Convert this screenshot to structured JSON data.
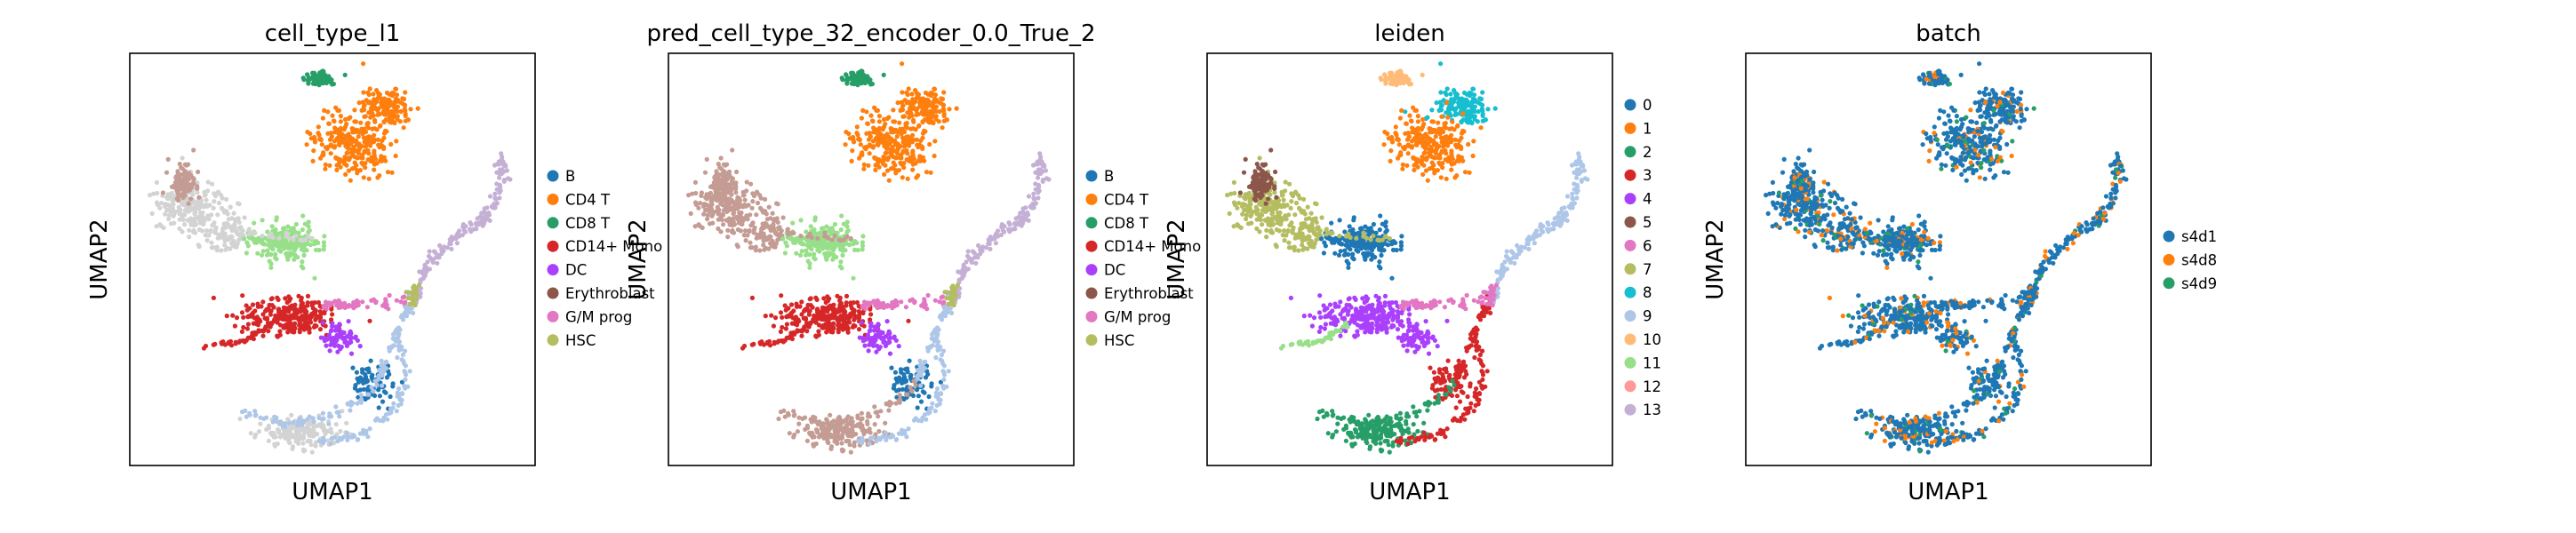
{
  "figure": {
    "panels": [
      {
        "title": "cell_type_l1",
        "xlabel": "UMAP1",
        "ylabel": "UMAP2",
        "legend": [
          {
            "label": "B",
            "color": "#1f77b4"
          },
          {
            "label": "CD4 T",
            "color": "#ff7f0e"
          },
          {
            "label": "CD8 T",
            "color": "#279e68"
          },
          {
            "label": "CD14+ Mono",
            "color": "#d62728"
          },
          {
            "label": "DC",
            "color": "#aa40fc"
          },
          {
            "label": "Erythroblast",
            "color": "#8c564b"
          },
          {
            "label": "G/M prog",
            "color": "#e377c2"
          },
          {
            "label": "HSC",
            "color": "#b5bd61"
          }
        ]
      },
      {
        "title": "pred_cell_type_32_encoder_0.0_True_2",
        "xlabel": "UMAP1",
        "ylabel": "UMAP2",
        "legend": [
          {
            "label": "B",
            "color": "#1f77b4"
          },
          {
            "label": "CD4 T",
            "color": "#ff7f0e"
          },
          {
            "label": "CD8 T",
            "color": "#279e68"
          },
          {
            "label": "CD14+ Mono",
            "color": "#d62728"
          },
          {
            "label": "DC",
            "color": "#aa40fc"
          },
          {
            "label": "Erythroblast",
            "color": "#8c564b"
          },
          {
            "label": "G/M prog",
            "color": "#e377c2"
          },
          {
            "label": "HSC",
            "color": "#b5bd61"
          }
        ]
      },
      {
        "title": "leiden",
        "xlabel": "UMAP1",
        "ylabel": "UMAP2",
        "legend": [
          {
            "label": "0",
            "color": "#1f77b4"
          },
          {
            "label": "1",
            "color": "#ff7f0e"
          },
          {
            "label": "2",
            "color": "#279e68"
          },
          {
            "label": "3",
            "color": "#d62728"
          },
          {
            "label": "4",
            "color": "#aa40fc"
          },
          {
            "label": "5",
            "color": "#8c564b"
          },
          {
            "label": "6",
            "color": "#e377c2"
          },
          {
            "label": "7",
            "color": "#b5bd61"
          },
          {
            "label": "8",
            "color": "#17becf"
          },
          {
            "label": "9",
            "color": "#aec7e8"
          },
          {
            "label": "10",
            "color": "#ffbb78"
          },
          {
            "label": "11",
            "color": "#98df8a"
          },
          {
            "label": "12",
            "color": "#ff9896"
          },
          {
            "label": "13",
            "color": "#c5b0d5"
          }
        ]
      },
      {
        "title": "batch",
        "xlabel": "UMAP1",
        "ylabel": "UMAP2",
        "legend": [
          {
            "label": "s4d1",
            "color": "#1f77b4"
          },
          {
            "label": "s4d8",
            "color": "#ff7f0e"
          },
          {
            "label": "s4d9",
            "color": "#279e68"
          }
        ]
      }
    ]
  },
  "chart_data": [
    {
      "type": "scatter",
      "title": "cell_type_l1",
      "xlabel": "UMAP1",
      "ylabel": "UMAP2",
      "grid": false,
      "legend_position": "right",
      "series": [
        {
          "name": "B",
          "color": "#1f77b4"
        },
        {
          "name": "CD4 T",
          "color": "#ff7f0e"
        },
        {
          "name": "CD8 T",
          "color": "#279e68"
        },
        {
          "name": "CD14+ Mono",
          "color": "#d62728"
        },
        {
          "name": "DC",
          "color": "#aa40fc"
        },
        {
          "name": "Erythroblast",
          "color": "#8c564b"
        },
        {
          "name": "G/M prog",
          "color": "#e377c2"
        },
        {
          "name": "HSC",
          "color": "#b5bd61"
        }
      ],
      "unlabeled_color": "#d3d3d3"
    },
    {
      "type": "scatter",
      "title": "pred_cell_type_32_encoder_0.0_True_2",
      "xlabel": "UMAP1",
      "ylabel": "UMAP2",
      "grid": false,
      "legend_position": "right",
      "series": [
        {
          "name": "B",
          "color": "#1f77b4"
        },
        {
          "name": "CD4 T",
          "color": "#ff7f0e"
        },
        {
          "name": "CD8 T",
          "color": "#279e68"
        },
        {
          "name": "CD14+ Mono",
          "color": "#d62728"
        },
        {
          "name": "DC",
          "color": "#aa40fc"
        },
        {
          "name": "Erythroblast",
          "color": "#8c564b"
        },
        {
          "name": "G/M prog",
          "color": "#e377c2"
        },
        {
          "name": "HSC",
          "color": "#b5bd61"
        }
      ]
    },
    {
      "type": "scatter",
      "title": "leiden",
      "xlabel": "UMAP1",
      "ylabel": "UMAP2",
      "grid": false,
      "legend_position": "right",
      "series": [
        {
          "name": "0",
          "color": "#1f77b4"
        },
        {
          "name": "1",
          "color": "#ff7f0e"
        },
        {
          "name": "2",
          "color": "#279e68"
        },
        {
          "name": "3",
          "color": "#d62728"
        },
        {
          "name": "4",
          "color": "#aa40fc"
        },
        {
          "name": "5",
          "color": "#8c564b"
        },
        {
          "name": "6",
          "color": "#e377c2"
        },
        {
          "name": "7",
          "color": "#b5bd61"
        },
        {
          "name": "8",
          "color": "#17becf"
        },
        {
          "name": "9",
          "color": "#aec7e8"
        },
        {
          "name": "10",
          "color": "#ffbb78"
        },
        {
          "name": "11",
          "color": "#98df8a"
        },
        {
          "name": "12",
          "color": "#ff9896"
        },
        {
          "name": "13",
          "color": "#c5b0d5"
        }
      ]
    },
    {
      "type": "scatter",
      "title": "batch",
      "xlabel": "UMAP1",
      "ylabel": "UMAP2",
      "grid": false,
      "legend_position": "right",
      "series": [
        {
          "name": "s4d1",
          "color": "#1f77b4"
        },
        {
          "name": "s4d8",
          "color": "#ff7f0e"
        },
        {
          "name": "s4d9",
          "color": "#279e68"
        }
      ]
    }
  ]
}
